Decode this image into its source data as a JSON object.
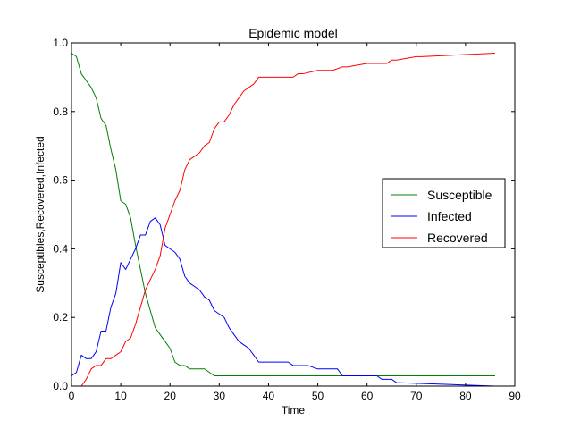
{
  "chart_data": {
    "type": "line",
    "title": "Epidemic model",
    "xlabel": "Time",
    "ylabel": "Susceptibles,Recovered,Infected",
    "xlim": [
      0,
      90
    ],
    "ylim": [
      0,
      1.0
    ],
    "xticks": [
      0,
      10,
      20,
      30,
      40,
      50,
      60,
      70,
      80,
      90
    ],
    "xtick_labels": [
      "0",
      "10",
      "20",
      "30",
      "40",
      "50",
      "60",
      "70",
      "80",
      "90"
    ],
    "yticks": [
      0,
      0.2,
      0.4,
      0.6,
      0.8,
      1.0
    ],
    "ytick_labels": [
      "0.0",
      "0.2",
      "0.4",
      "0.6",
      "0.8",
      "1.0"
    ],
    "grid": false,
    "legend_position": "center-right",
    "series": [
      {
        "name": "Susceptible",
        "color": "#008000",
        "x": [
          0,
          1,
          2,
          3,
          4,
          5,
          6,
          7,
          8,
          9,
          10,
          11,
          12,
          13,
          14,
          15,
          16,
          17,
          18,
          19,
          20,
          21,
          22,
          23,
          24,
          25,
          26,
          27,
          28,
          29,
          30,
          40,
          50,
          60,
          70,
          80,
          86
        ],
        "y": [
          0.97,
          0.96,
          0.91,
          0.89,
          0.87,
          0.84,
          0.78,
          0.76,
          0.69,
          0.63,
          0.54,
          0.53,
          0.49,
          0.41,
          0.34,
          0.27,
          0.22,
          0.17,
          0.15,
          0.13,
          0.11,
          0.07,
          0.06,
          0.06,
          0.05,
          0.05,
          0.05,
          0.05,
          0.04,
          0.03,
          0.03,
          0.03,
          0.03,
          0.03,
          0.03,
          0.03,
          0.03
        ]
      },
      {
        "name": "Infected",
        "color": "#0000ff",
        "x": [
          0,
          1,
          2,
          3,
          4,
          5,
          6,
          7,
          8,
          9,
          10,
          11,
          12,
          13,
          14,
          15,
          16,
          17,
          18,
          19,
          20,
          21,
          22,
          23,
          24,
          25,
          26,
          27,
          28,
          29,
          30,
          31,
          32,
          33,
          34,
          35,
          36,
          37,
          38,
          44,
          45,
          48,
          50,
          54,
          55,
          62,
          63,
          65,
          66,
          86
        ],
        "y": [
          0.03,
          0.04,
          0.09,
          0.08,
          0.08,
          0.1,
          0.16,
          0.16,
          0.23,
          0.27,
          0.36,
          0.34,
          0.37,
          0.4,
          0.44,
          0.44,
          0.48,
          0.49,
          0.47,
          0.41,
          0.4,
          0.39,
          0.37,
          0.32,
          0.3,
          0.29,
          0.28,
          0.26,
          0.25,
          0.22,
          0.21,
          0.2,
          0.17,
          0.15,
          0.13,
          0.12,
          0.11,
          0.09,
          0.07,
          0.07,
          0.06,
          0.06,
          0.05,
          0.05,
          0.03,
          0.03,
          0.02,
          0.02,
          0.01,
          0.0
        ]
      },
      {
        "name": "Recovered",
        "color": "#ff0000",
        "x": [
          0,
          2,
          3,
          4,
          5,
          6,
          7,
          8,
          9,
          10,
          11,
          12,
          13,
          14,
          15,
          16,
          17,
          18,
          19,
          20,
          21,
          22,
          23,
          24,
          25,
          26,
          27,
          28,
          29,
          30,
          31,
          32,
          33,
          34,
          35,
          36,
          37,
          38,
          44,
          45,
          46,
          47,
          50,
          52,
          53,
          55,
          56,
          60,
          61,
          62,
          64,
          65,
          66,
          70,
          71,
          86
        ],
        "y": [
          0.0,
          0.0,
          0.02,
          0.05,
          0.06,
          0.06,
          0.08,
          0.08,
          0.09,
          0.1,
          0.13,
          0.14,
          0.18,
          0.23,
          0.28,
          0.31,
          0.34,
          0.38,
          0.46,
          0.5,
          0.54,
          0.57,
          0.63,
          0.66,
          0.67,
          0.68,
          0.7,
          0.71,
          0.75,
          0.77,
          0.77,
          0.79,
          0.82,
          0.84,
          0.86,
          0.87,
          0.88,
          0.9,
          0.9,
          0.9,
          0.91,
          0.91,
          0.92,
          0.92,
          0.92,
          0.93,
          0.93,
          0.94,
          0.94,
          0.94,
          0.94,
          0.95,
          0.95,
          0.96,
          0.96,
          0.97
        ]
      }
    ]
  }
}
